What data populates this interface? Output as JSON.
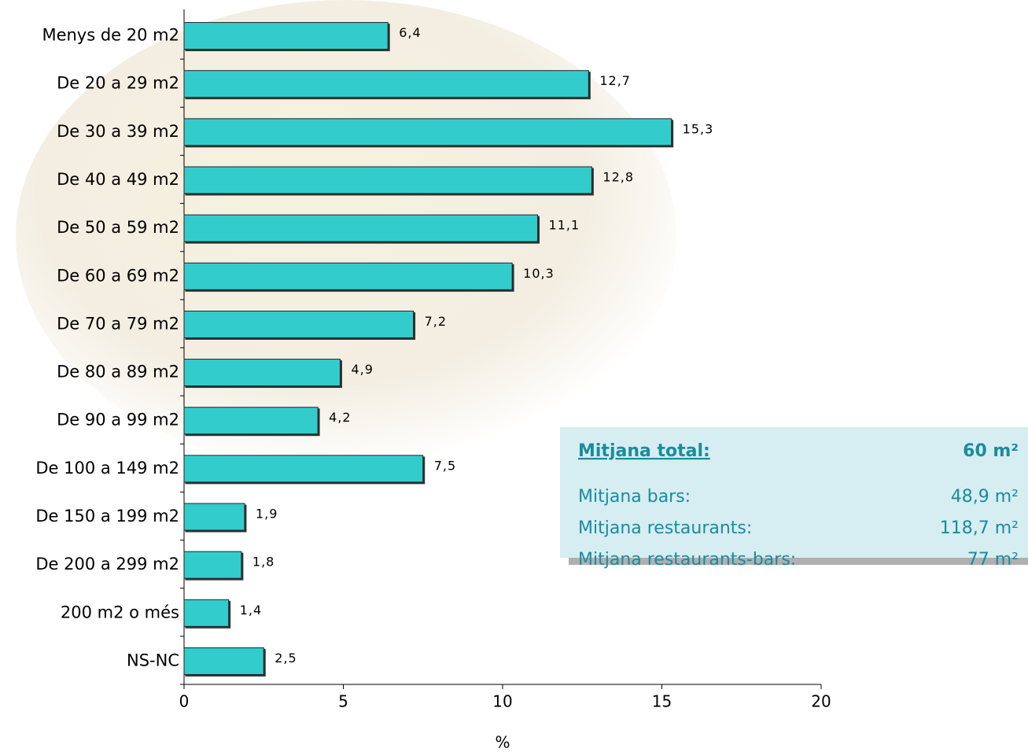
{
  "chart_data": {
    "type": "bar",
    "orientation": "horizontal",
    "categories": [
      "Menys de 20 m2",
      "De 20 a 29 m2",
      "De 30 a 39 m2",
      "De 40 a 49 m2",
      "De 50 a 59 m2",
      "De 60 a 69 m2",
      "De 70 a 79 m2",
      "De 80 a 89 m2",
      "De 90 a 99 m2",
      "De 100 a 149 m2",
      "De 150 a 199 m2",
      "De 200 a 299 m2",
      "200 m2 o més",
      "NS-NC"
    ],
    "values": [
      6.4,
      12.7,
      15.3,
      12.8,
      11.1,
      10.3,
      7.2,
      4.9,
      4.2,
      7.5,
      1.9,
      1.8,
      1.4,
      2.5
    ],
    "value_labels": [
      "6,4",
      "12,7",
      "15,3",
      "12,8",
      "11,1",
      "10,3",
      "7,2",
      "4,9",
      "4,2",
      "7,5",
      "1,9",
      "1,8",
      "1,4",
      "2,5"
    ],
    "color": "#33cccc",
    "xlim": [
      0,
      20
    ],
    "xticks": [
      0,
      5,
      10,
      15,
      20
    ],
    "x_label": "%",
    "summary": {
      "title": "Mitjana total:",
      "title_value": "60 m²",
      "rows": [
        {
          "label": "Mitjana bars:",
          "value": "48,9 m²"
        },
        {
          "label": "Mitjana restaurants:",
          "value": "118,7 m²"
        },
        {
          "label": "Mitjana restaurants-bars:",
          "value": "77 m²"
        }
      ]
    }
  }
}
